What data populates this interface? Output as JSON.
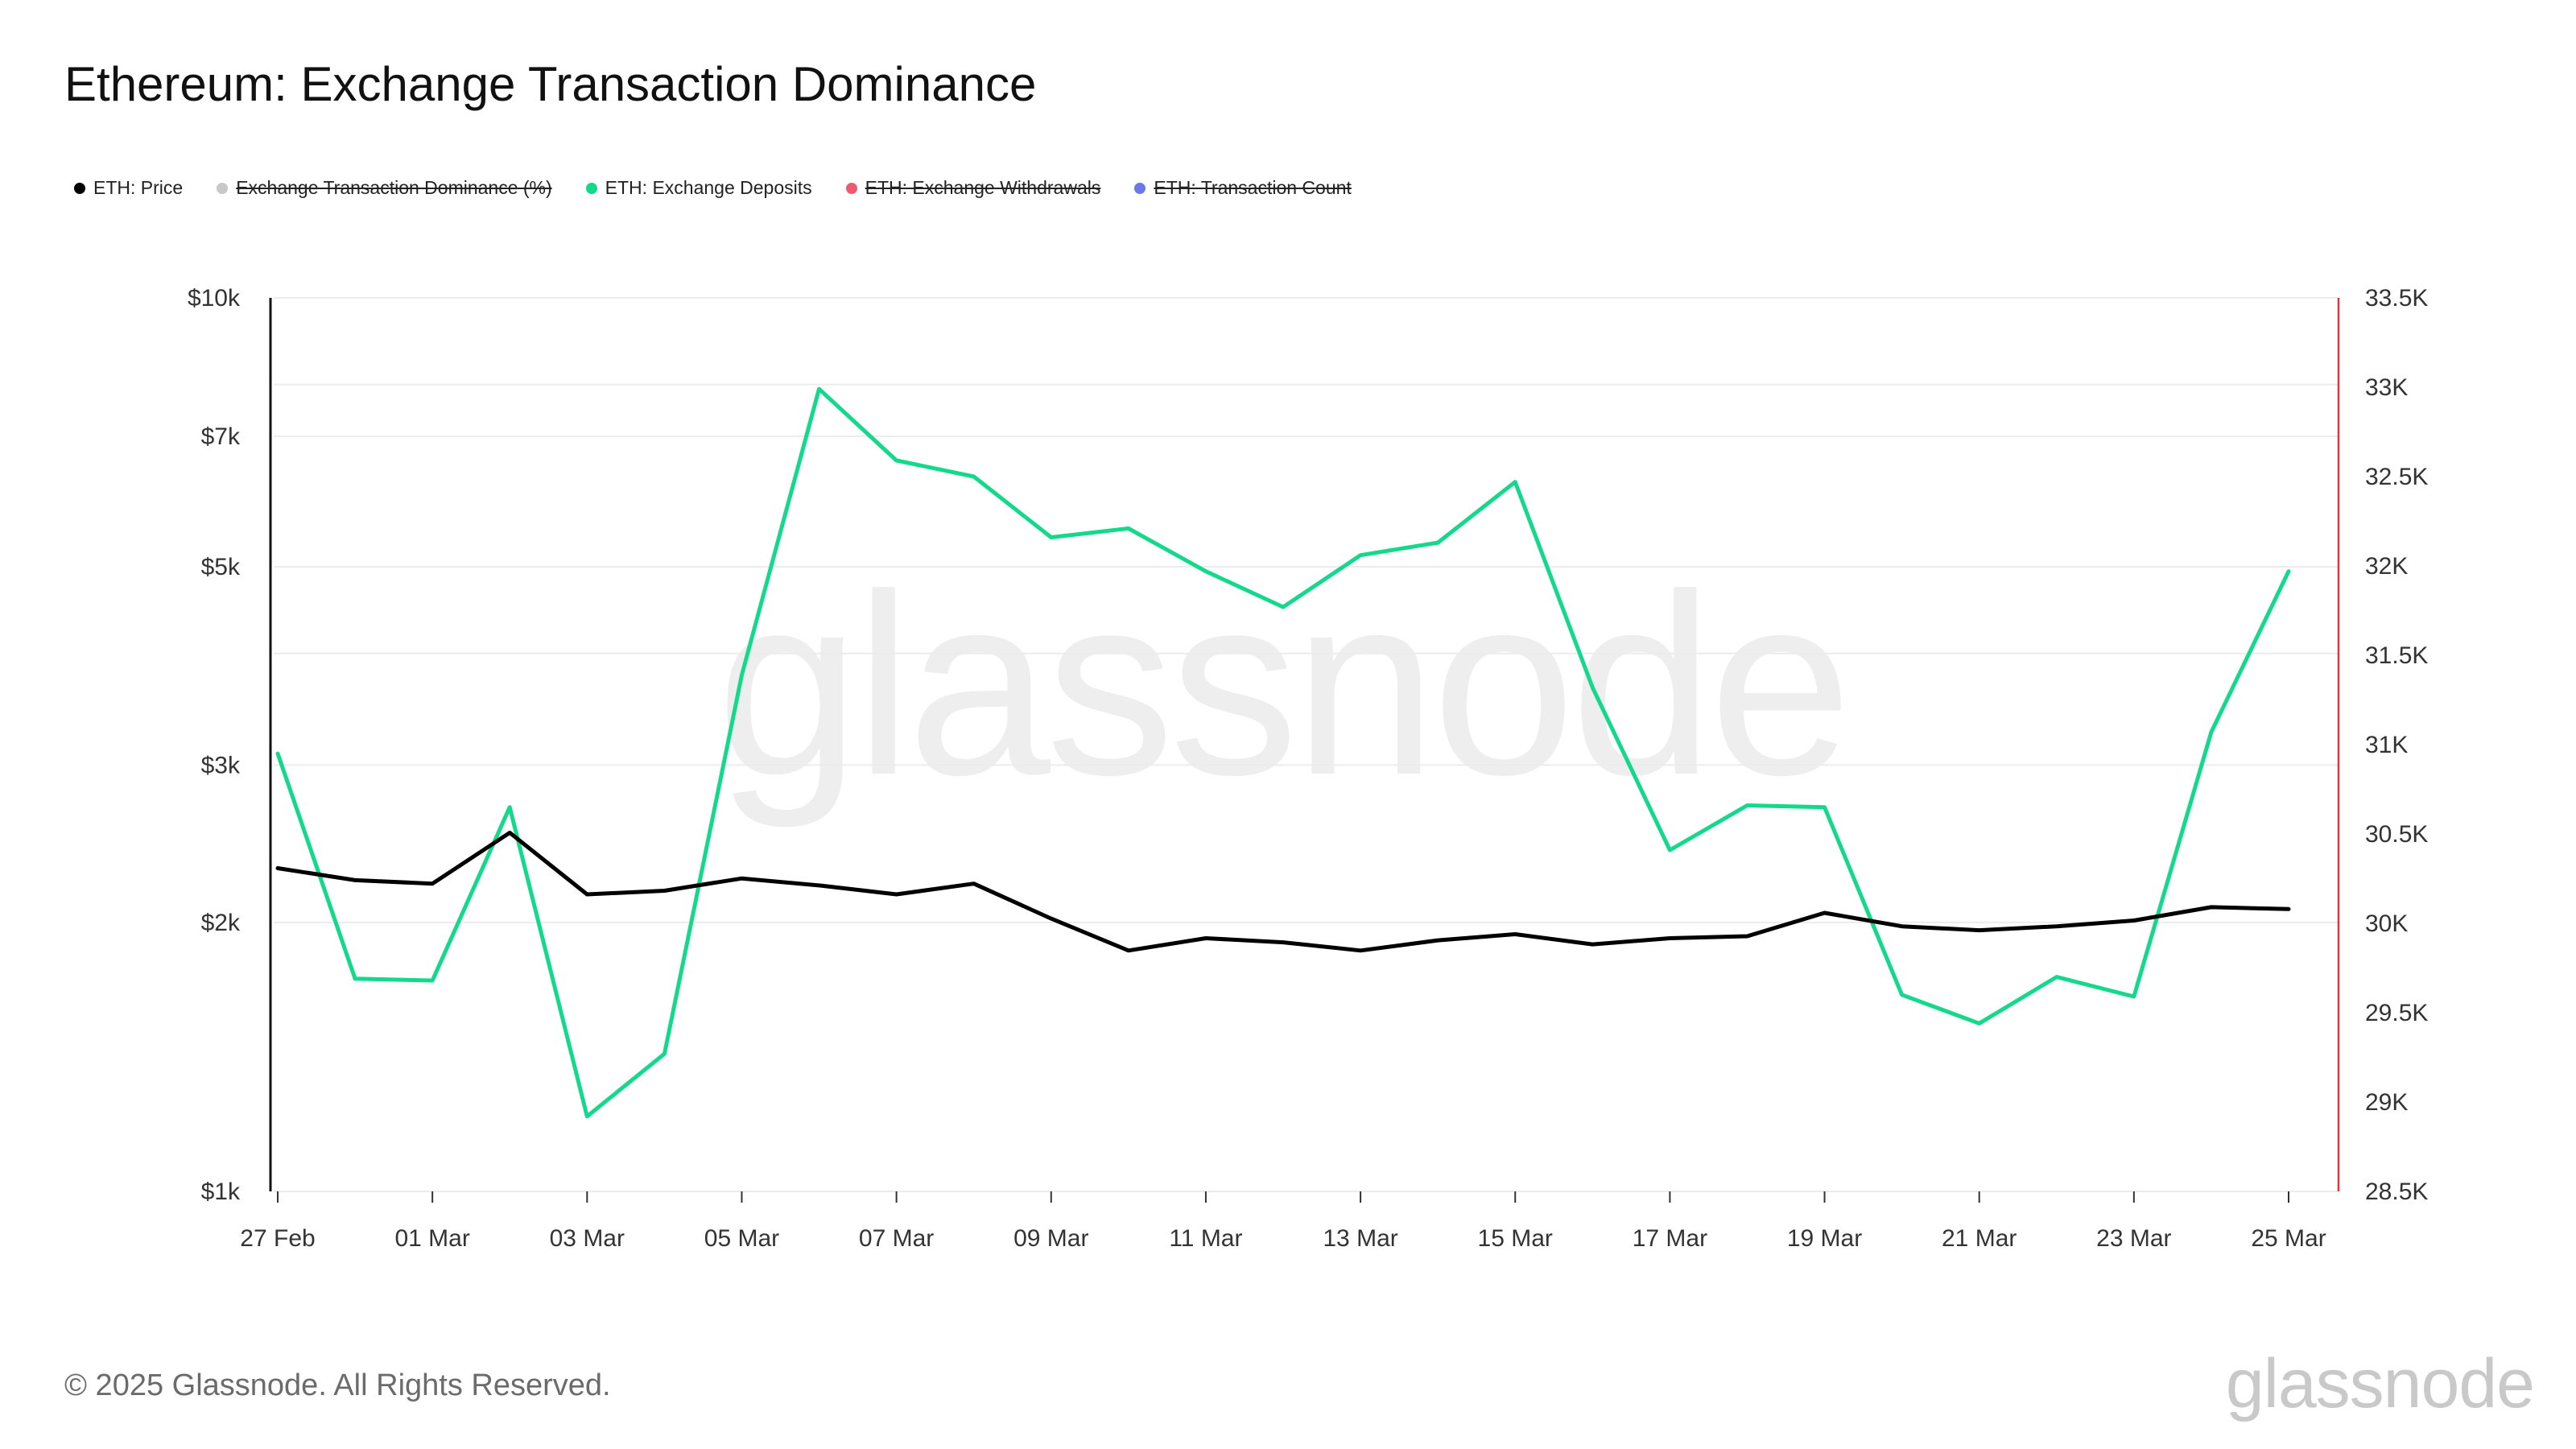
{
  "title": "Ethereum: Exchange Transaction Dominance",
  "legend": [
    {
      "label": "ETH: Price",
      "color": "#000000",
      "hidden": false
    },
    {
      "label": "Exchange Transaction Dominance (%)",
      "color": "#c8c8c8",
      "hidden": true
    },
    {
      "label": "ETH: Exchange Deposits",
      "color": "#14d98c",
      "hidden": false
    },
    {
      "label": "ETH: Exchange Withdrawals",
      "color": "#ee5a6f",
      "hidden": true
    },
    {
      "label": "ETH: Transaction Count",
      "color": "#6a78e8",
      "hidden": true
    }
  ],
  "watermark": "glassnode",
  "footer": {
    "copyright": "© 2025 Glassnode. All Rights Reserved.",
    "logo": "glassnode"
  },
  "colors": {
    "price": "#000000",
    "deposits": "#14d98c",
    "right_axis": "#e0333f",
    "grid": "#ececec"
  },
  "chart_data": {
    "type": "line",
    "x": [
      "27 Feb",
      "28 Feb",
      "01 Mar",
      "02 Mar",
      "03 Mar",
      "04 Mar",
      "05 Mar",
      "06 Mar",
      "07 Mar",
      "08 Mar",
      "09 Mar",
      "10 Mar",
      "11 Mar",
      "12 Mar",
      "13 Mar",
      "14 Mar",
      "15 Mar",
      "16 Mar",
      "17 Mar",
      "18 Mar",
      "19 Mar",
      "20 Mar",
      "21 Mar",
      "22 Mar",
      "23 Mar",
      "24 Mar",
      "25 Mar"
    ],
    "x_tick_labels": [
      "27 Feb",
      "01 Mar",
      "03 Mar",
      "05 Mar",
      "07 Mar",
      "09 Mar",
      "11 Mar",
      "13 Mar",
      "15 Mar",
      "17 Mar",
      "19 Mar",
      "21 Mar",
      "23 Mar",
      "25 Mar"
    ],
    "y_left": {
      "scale": "log",
      "range": [
        1000,
        10000
      ],
      "ticks": [
        1000,
        2000,
        3000,
        5000,
        7000,
        10000
      ],
      "tick_labels": [
        "$1k",
        "$2k",
        "$3k",
        "$5k",
        "$7k",
        "$10k"
      ]
    },
    "y_right": {
      "scale": "linear",
      "range": [
        28500,
        33500
      ],
      "ticks": [
        28500,
        29000,
        29500,
        30000,
        30500,
        31000,
        31500,
        32000,
        32500,
        33000,
        33500
      ],
      "tick_labels": [
        "28.5K",
        "29K",
        "29.5K",
        "30K",
        "30.5K",
        "31K",
        "31.5K",
        "32K",
        "32.5K",
        "33K",
        "33.5K"
      ]
    },
    "series": [
      {
        "name": "ETH: Price",
        "axis": "left",
        "color": "#000000",
        "values": [
          2300,
          2230,
          2210,
          2520,
          2150,
          2170,
          2240,
          2200,
          2150,
          2210,
          2020,
          1860,
          1920,
          1900,
          1860,
          1910,
          1940,
          1890,
          1920,
          1930,
          2050,
          1980,
          1960,
          1980,
          2010,
          2080,
          2070
        ]
      },
      {
        "name": "ETH: Exchange Deposits",
        "axis": "right",
        "color": "#14d98c",
        "values": [
          30950,
          29690,
          29680,
          30650,
          28920,
          29270,
          31390,
          32990,
          32590,
          32500,
          32160,
          32210,
          31970,
          31770,
          32060,
          32130,
          32470,
          31320,
          30410,
          30660,
          30650,
          29600,
          29440,
          29700,
          29590,
          31070,
          31970
        ]
      }
    ],
    "grid": true,
    "legend_position": "top-left"
  }
}
